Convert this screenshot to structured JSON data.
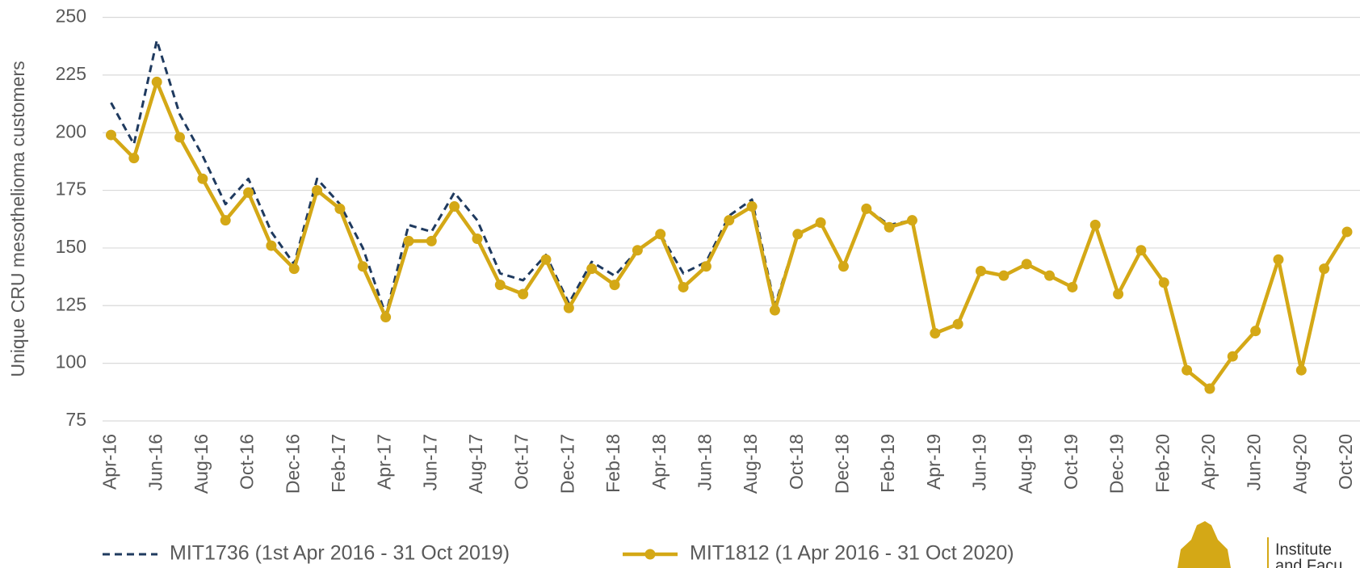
{
  "chart_data": {
    "type": "line",
    "y_label": "Unique CRU mesothelioma customers",
    "categories": [
      "Apr-16",
      null,
      "Jun-16",
      null,
      "Aug-16",
      null,
      "Oct-16",
      null,
      "Dec-16",
      null,
      "Feb-17",
      null,
      "Apr-17",
      null,
      "Jun-17",
      null,
      "Aug-17",
      null,
      "Oct-17",
      null,
      "Dec-17",
      null,
      "Feb-18",
      null,
      "Apr-18",
      null,
      "Jun-18",
      null,
      "Aug-18",
      null,
      "Oct-18",
      null,
      "Dec-18",
      null,
      "Feb-19",
      null,
      "Apr-19",
      null,
      "Jun-19",
      null,
      "Aug-19",
      null,
      "Oct-19",
      null,
      "Dec-19",
      null,
      "Feb-20",
      null,
      "Apr-20",
      null,
      "Jun-20",
      null,
      "Aug-20",
      null,
      "Oct-20"
    ],
    "series": [
      {
        "name": "MIT1736 (1st Apr 2016 - 31 Oct 2019)",
        "color": "#1f3a5f",
        "dashed": true,
        "markers": false,
        "values": [
          213,
          195,
          240,
          208,
          190,
          169,
          180,
          157,
          143,
          180,
          169,
          150,
          121,
          160,
          157,
          174,
          162,
          139,
          136,
          147,
          126,
          144,
          138,
          149,
          156,
          139,
          144,
          164,
          171,
          125,
          156,
          161,
          142,
          167,
          160,
          162,
          113,
          117,
          140,
          138,
          143,
          138,
          133,
          null,
          null,
          null,
          null,
          null,
          null,
          null,
          null,
          null,
          null,
          null,
          null
        ]
      },
      {
        "name": "MIT1812 (1 Apr 2016 - 31 Oct 2020)",
        "color": "#d4a816",
        "dashed": false,
        "markers": true,
        "values": [
          199,
          189,
          222,
          198,
          180,
          162,
          174,
          151,
          141,
          175,
          167,
          142,
          120,
          153,
          153,
          168,
          154,
          134,
          130,
          145,
          124,
          141,
          134,
          149,
          156,
          133,
          142,
          162,
          168,
          123,
          156,
          161,
          142,
          167,
          159,
          162,
          113,
          117,
          140,
          138,
          143,
          138,
          133,
          160,
          130,
          149,
          135,
          97,
          89,
          103,
          114,
          145,
          97,
          141,
          157
        ]
      }
    ],
    "ylim": [
      75,
      250
    ],
    "yticks": [
      75,
      100,
      125,
      150,
      175,
      200,
      225,
      250
    ],
    "grid": true,
    "logo": {
      "line1": "Institute",
      "line2": "and Facu"
    }
  }
}
